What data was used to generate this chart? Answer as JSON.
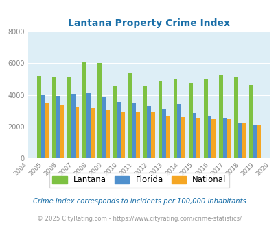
{
  "title": "Lantana Property Crime Index",
  "valid_years": [
    2005,
    2006,
    2007,
    2008,
    2009,
    2010,
    2011,
    2012,
    2013,
    2014,
    2015,
    2016,
    2017,
    2018,
    2019
  ],
  "lantana": [
    5200,
    5100,
    5100,
    6100,
    6000,
    4550,
    5350,
    4600,
    4850,
    5000,
    4750,
    5000,
    5250,
    5100,
    4650
  ],
  "florida": [
    4000,
    3950,
    4050,
    4100,
    3900,
    3550,
    3500,
    3300,
    3100,
    3400,
    2850,
    2650,
    2500,
    2200,
    2100
  ],
  "national": [
    3450,
    3350,
    3250,
    3150,
    3050,
    2950,
    2900,
    2900,
    2700,
    2600,
    2500,
    2450,
    2450,
    2200,
    2100
  ],
  "all_xtick_years": [
    2004,
    2005,
    2006,
    2007,
    2008,
    2009,
    2010,
    2011,
    2012,
    2013,
    2014,
    2015,
    2016,
    2017,
    2018,
    2019,
    2020
  ],
  "lantana_color": "#7dc142",
  "florida_color": "#4f90cd",
  "national_color": "#f5a623",
  "bg_color": "#ddeef6",
  "ylim": [
    0,
    8000
  ],
  "yticks": [
    0,
    2000,
    4000,
    6000,
    8000
  ],
  "legend_labels": [
    "Lantana",
    "Florida",
    "National"
  ],
  "footnote1": "Crime Index corresponds to incidents per 100,000 inhabitants",
  "footnote2": "© 2025 CityRating.com - https://www.cityrating.com/crime-statistics/",
  "title_color": "#1a6fa8",
  "footnote1_color": "#1a6fa8",
  "footnote2_color": "#999999",
  "bar_width": 0.26,
  "grid_color": "#ffffff",
  "tick_label_color": "#888888"
}
